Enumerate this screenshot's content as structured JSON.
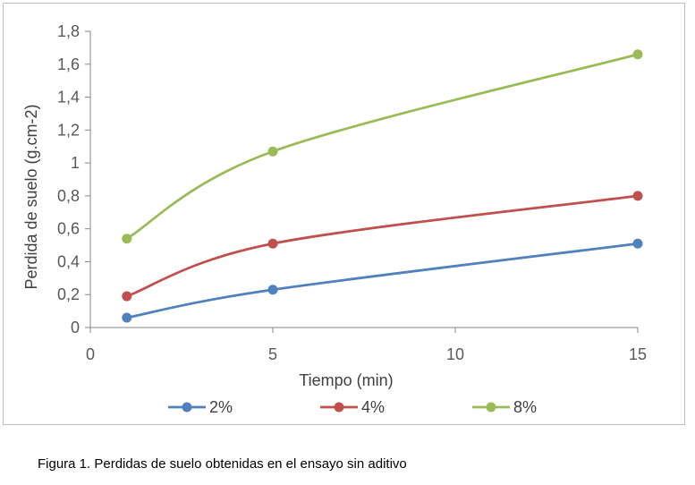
{
  "chart_data": {
    "type": "line",
    "xlabel": "Tiempo (min)",
    "ylabel": "Perdida de suelo (g.cm-2)",
    "xlim": [
      0,
      15
    ],
    "ylim": [
      0,
      1.8
    ],
    "x_ticks": [
      0,
      5,
      10,
      15
    ],
    "x_tick_labels": [
      "0",
      "5",
      "10",
      "15"
    ],
    "y_ticks": [
      0,
      0.2,
      0.4,
      0.6,
      0.8,
      1,
      1.2,
      1.4,
      1.6,
      1.8
    ],
    "y_tick_labels": [
      "0",
      "0,2",
      "0,4",
      "0,6",
      "0,8",
      "1",
      "1,2",
      "1,4",
      "1,6",
      "1,8"
    ],
    "grid": false,
    "smooth": true,
    "legend_position": "bottom",
    "series": [
      {
        "name": "2%",
        "color": "#4f81bd",
        "x": [
          1,
          5,
          15
        ],
        "values": [
          0.06,
          0.23,
          0.51
        ]
      },
      {
        "name": "4%",
        "color": "#c0504d",
        "x": [
          1,
          5,
          15
        ],
        "values": [
          0.19,
          0.51,
          0.8
        ]
      },
      {
        "name": "8%",
        "color": "#9bbb59",
        "x": [
          1,
          5,
          15
        ],
        "values": [
          0.54,
          1.07,
          1.66
        ]
      }
    ]
  },
  "caption": "Figura 1. Perdidas de suelo obtenidas en el ensayo sin aditivo"
}
